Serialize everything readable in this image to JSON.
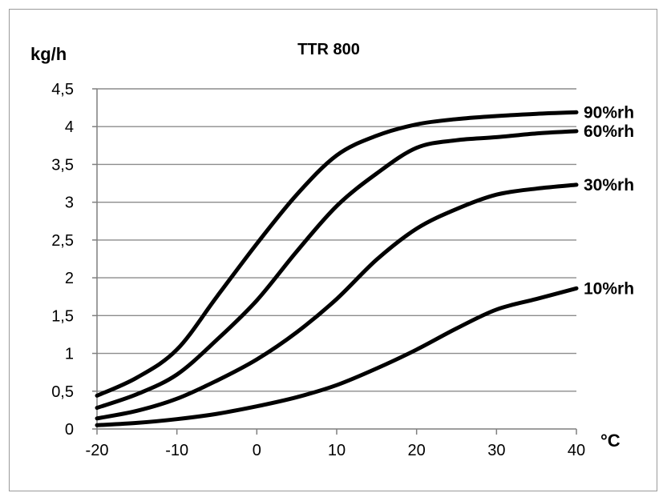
{
  "chart_data": {
    "type": "line",
    "title": "TTR 800",
    "ylabel": "kg/h",
    "xlabel": "°C",
    "xlim": [
      -20,
      40
    ],
    "ylim": [
      0,
      4.5
    ],
    "x_ticks": [
      -20,
      -10,
      0,
      10,
      20,
      30,
      40
    ],
    "x_tick_labels": [
      "-20",
      "-10",
      "0",
      "10",
      "20",
      "30",
      "40"
    ],
    "y_ticks": [
      0,
      0.5,
      1,
      1.5,
      2,
      2.5,
      3,
      3.5,
      4,
      4.5
    ],
    "y_tick_labels": [
      "0",
      "0,5",
      "1",
      "1,5",
      "2",
      "2,5",
      "3",
      "3,5",
      "4",
      "4,5"
    ],
    "grid": "horizontal",
    "legend": "inline-right",
    "line_color": "#000000",
    "x": [
      -20,
      -15,
      -10,
      -5,
      0,
      5,
      10,
      15,
      20,
      25,
      30,
      35,
      40
    ],
    "series": [
      {
        "name": "90%rh",
        "values": [
          0.44,
          0.68,
          1.05,
          1.75,
          2.45,
          3.1,
          3.62,
          3.88,
          4.03,
          4.1,
          4.14,
          4.17,
          4.19
        ]
      },
      {
        "name": "60%rh",
        "values": [
          0.28,
          0.46,
          0.72,
          1.18,
          1.7,
          2.35,
          2.95,
          3.38,
          3.72,
          3.82,
          3.86,
          3.91,
          3.94
        ]
      },
      {
        "name": "30%rh",
        "values": [
          0.14,
          0.24,
          0.4,
          0.64,
          0.92,
          1.28,
          1.72,
          2.24,
          2.65,
          2.91,
          3.1,
          3.18,
          3.23
        ]
      },
      {
        "name": "10%rh",
        "values": [
          0.05,
          0.08,
          0.13,
          0.2,
          0.3,
          0.42,
          0.58,
          0.8,
          1.05,
          1.33,
          1.58,
          1.72,
          1.86
        ]
      }
    ]
  }
}
